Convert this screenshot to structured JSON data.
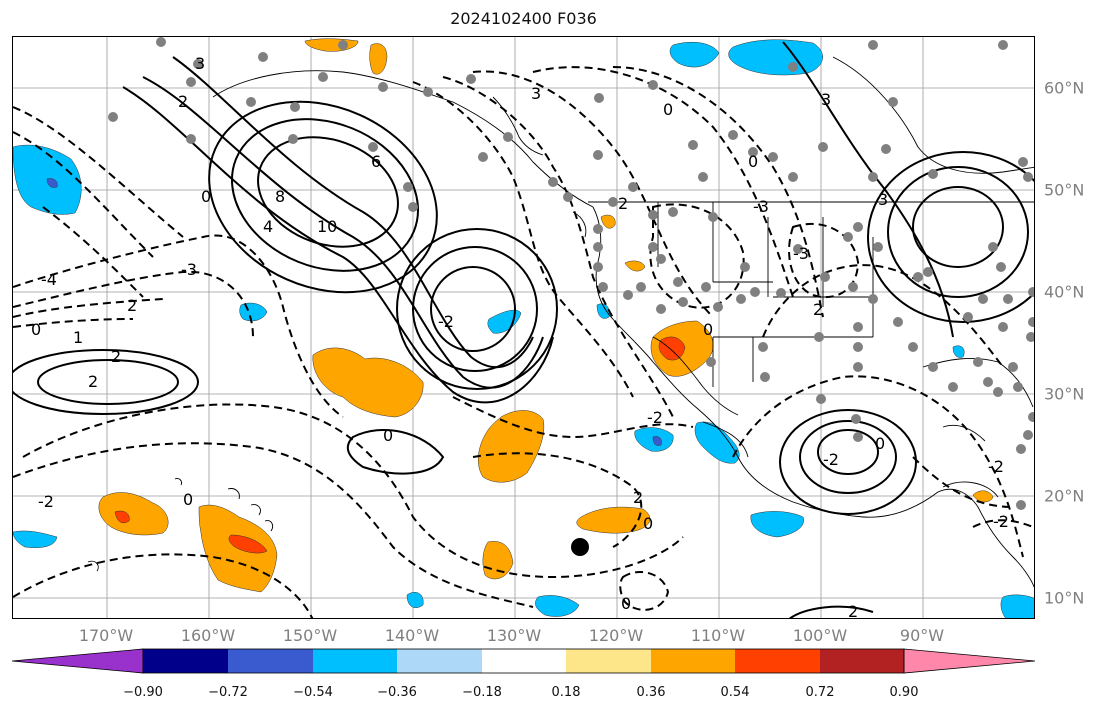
{
  "title": "2024102400 F036",
  "lon_labels": [
    "170°W",
    "160°W",
    "150°W",
    "140°W",
    "130°W",
    "120°W",
    "110°W",
    "100°W",
    "90°W"
  ],
  "lat_labels": [
    "60°N",
    "50°N",
    "40°N",
    "30°N",
    "20°N",
    "10°N"
  ],
  "contour_labels": [
    "3",
    "2",
    "0",
    "8",
    "10",
    "6",
    "4",
    "-4",
    "-3",
    "2",
    "0",
    "1",
    "2",
    "2",
    "0",
    "-2",
    "0",
    "-2",
    "2",
    "0",
    "-2",
    "0",
    "3",
    "2",
    "3",
    "0",
    "-3",
    "2",
    "0",
    "-3",
    "-2",
    "3",
    "0",
    "-2",
    "-2",
    "2",
    "0"
  ],
  "colorbar": {
    "colors": [
      "#9932cc",
      "#00008b",
      "#3a5bd0",
      "#00bfff",
      "#add8f8",
      "#ffffff",
      "#fde68a",
      "#ffa500",
      "#ff4000",
      "#b22222",
      "#ff88aa"
    ],
    "tick_labels": [
      "−0.90",
      "−0.72",
      "−0.54",
      "−0.36",
      "−0.18",
      "0.18",
      "0.36",
      "0.54",
      "0.72",
      "0.90"
    ],
    "extend": "both"
  },
  "marker": {
    "type": "black-dot"
  }
}
